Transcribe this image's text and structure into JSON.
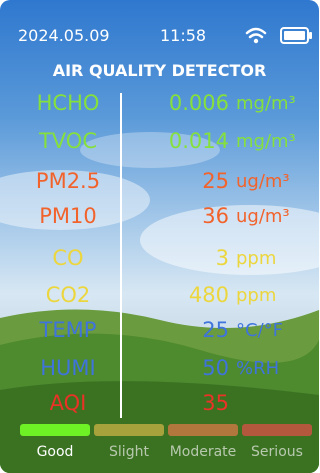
{
  "status_bar": {
    "date": "2024.05.09",
    "time": "11:58"
  },
  "title": "AIR QUALITY DETECTOR",
  "readings": [
    {
      "label": "HCHO",
      "value": 0.006,
      "unit": "mg/m³",
      "color": "#86e03c"
    },
    {
      "label": "TVOC",
      "value": 0.014,
      "unit": "mg/m³",
      "color": "#86e03c"
    },
    {
      "label": "PM2.5",
      "value": 25,
      "unit": "ug/m³",
      "color": "#f2632c"
    },
    {
      "label": "PM10",
      "value": 36,
      "unit": "ug/m³",
      "color": "#f2632c"
    },
    {
      "label": "CO",
      "value": 3,
      "unit": "ppm",
      "color": "#ecd63e"
    },
    {
      "label": "CO2",
      "value": 480,
      "unit": "ppm",
      "color": "#ecd63e"
    },
    {
      "label": "TEMP",
      "value": 25,
      "unit": "°C/°F",
      "color": "#3f74dc"
    },
    {
      "label": "HUMI",
      "value": 50,
      "unit": "%RH",
      "color": "#3f74dc"
    },
    {
      "label": "AQI",
      "value": 35,
      "unit": null,
      "color": "#ea3226"
    }
  ],
  "legend": [
    {
      "label": "Good",
      "color": "#6ef226"
    },
    {
      "label": "Slight",
      "color": "#a8a23c"
    },
    {
      "label": "Moderate",
      "color": "#b2773c"
    },
    {
      "label": "Serious",
      "color": "#b3583c"
    }
  ]
}
